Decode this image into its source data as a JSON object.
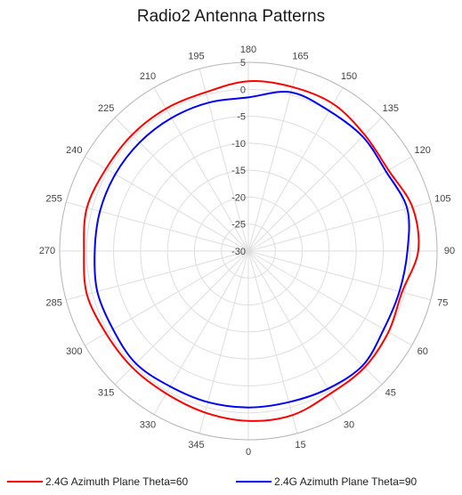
{
  "chart_data": {
    "type": "polar-line",
    "title": "Radio2 Antenna Patterns",
    "radial_range": [
      -30,
      5
    ],
    "radial_ticks": [
      5,
      0,
      -5,
      -10,
      -15,
      -20,
      -25,
      -30
    ],
    "radial_tick_labels": [
      "5",
      "0",
      "-5",
      "-10",
      "-15",
      "-20",
      "-25",
      "-30"
    ],
    "angle_ticks": [
      0,
      15,
      30,
      45,
      60,
      75,
      90,
      105,
      120,
      135,
      150,
      165,
      180,
      195,
      210,
      225,
      240,
      255,
      270,
      285,
      300,
      315,
      330,
      345
    ],
    "angle_tick_labels": [
      "0",
      "15",
      "30",
      "45",
      "60",
      "75",
      "90",
      "105",
      "120",
      "135",
      "150",
      "165",
      "180",
      "195",
      "210",
      "225",
      "240",
      "255",
      "270",
      "285",
      "300",
      "315",
      "330",
      "345"
    ],
    "angle_zero": "bottom",
    "angle_direction": "counterclockwise",
    "grid": true,
    "legend_position": "bottom",
    "series": [
      {
        "name": "2.4G Azimuth Plane Theta=60",
        "color": "#ff0000",
        "angles": [
          0,
          15,
          30,
          45,
          60,
          75,
          90,
          105,
          120,
          135,
          150,
          165,
          180,
          195,
          210,
          225,
          240,
          255,
          270,
          285,
          300,
          315,
          330,
          345
        ],
        "values": [
          1.5,
          1.5,
          0.5,
          0.5,
          0,
          -0.5,
          1.5,
          1.5,
          0,
          0.5,
          1.5,
          1.5,
          1.5,
          0.5,
          0.5,
          0.5,
          0.5,
          1,
          0.5,
          1,
          0.5,
          0.5,
          0.5,
          1
        ]
      },
      {
        "name": "2.4G Azimuth Plane Theta=90",
        "color": "#0000ff",
        "angles": [
          0,
          15,
          30,
          45,
          60,
          75,
          90,
          105,
          120,
          135,
          150,
          165,
          180,
          195,
          210,
          225,
          240,
          255,
          270,
          285,
          300,
          315,
          330,
          345
        ],
        "values": [
          -1,
          -1,
          -0.5,
          0,
          -1,
          -1,
          -0.5,
          0.5,
          -0.5,
          0,
          0,
          0.5,
          -1.5,
          -1.5,
          -1.5,
          -1.5,
          -1.5,
          -1.5,
          -1.5,
          -1,
          -1,
          -0.5,
          -1,
          -1
        ]
      }
    ]
  }
}
